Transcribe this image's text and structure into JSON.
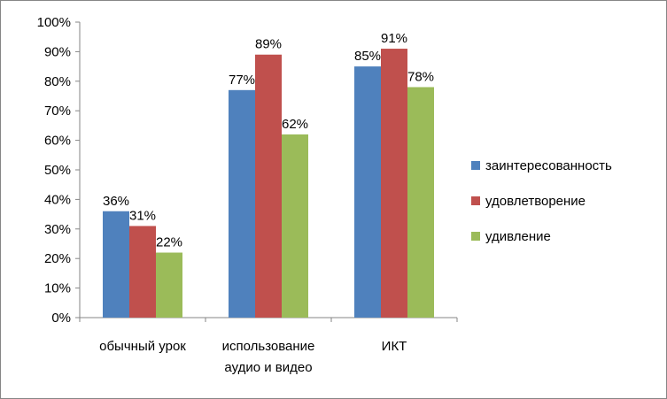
{
  "chart_data": {
    "type": "bar",
    "categories": [
      [
        "обычный урок"
      ],
      [
        "использование",
        "аудио и видео"
      ],
      [
        "ИКТ"
      ]
    ],
    "series": [
      {
        "name": "заинтересованность",
        "color": "#4F81BD",
        "values": [
          36,
          77,
          85
        ]
      },
      {
        "name": "удовлетворение",
        "color": "#C0504D",
        "values": [
          31,
          89,
          91
        ]
      },
      {
        "name": "удивление",
        "color": "#9BBB59",
        "values": [
          22,
          62,
          78
        ]
      }
    ],
    "value_suffix": "%",
    "ylim": [
      0,
      100
    ],
    "yticks": [
      0,
      10,
      20,
      30,
      40,
      50,
      60,
      70,
      80,
      90,
      100
    ],
    "title": "",
    "xlabel": "",
    "ylabel": "",
    "grid": false,
    "legend_position": "right"
  }
}
